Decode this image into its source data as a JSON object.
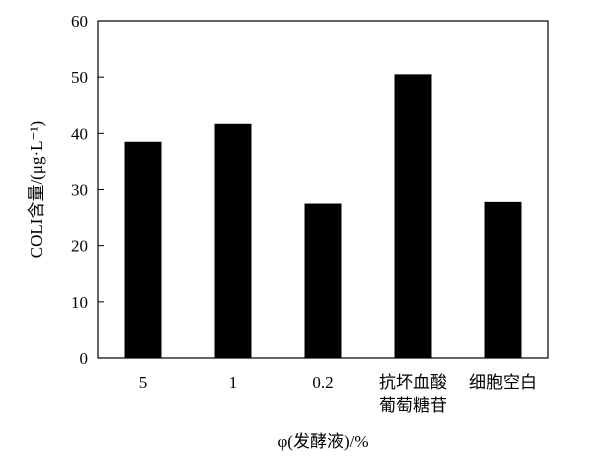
{
  "chart_data": {
    "type": "bar",
    "categories": [
      "5",
      "1",
      "0.2",
      "抗坏血酸\n葡萄糖苷",
      "细胞空白"
    ],
    "values": [
      38.5,
      41.7,
      27.5,
      50.5,
      27.8
    ],
    "xlabel": "φ(发酵液)/%",
    "ylabel": "COLI含量/(μg·L⁻¹)",
    "ylim": [
      0,
      60
    ],
    "yticks": [
      0,
      10,
      20,
      30,
      40,
      50,
      60
    ],
    "grid": false,
    "bar_color": "#000000"
  }
}
